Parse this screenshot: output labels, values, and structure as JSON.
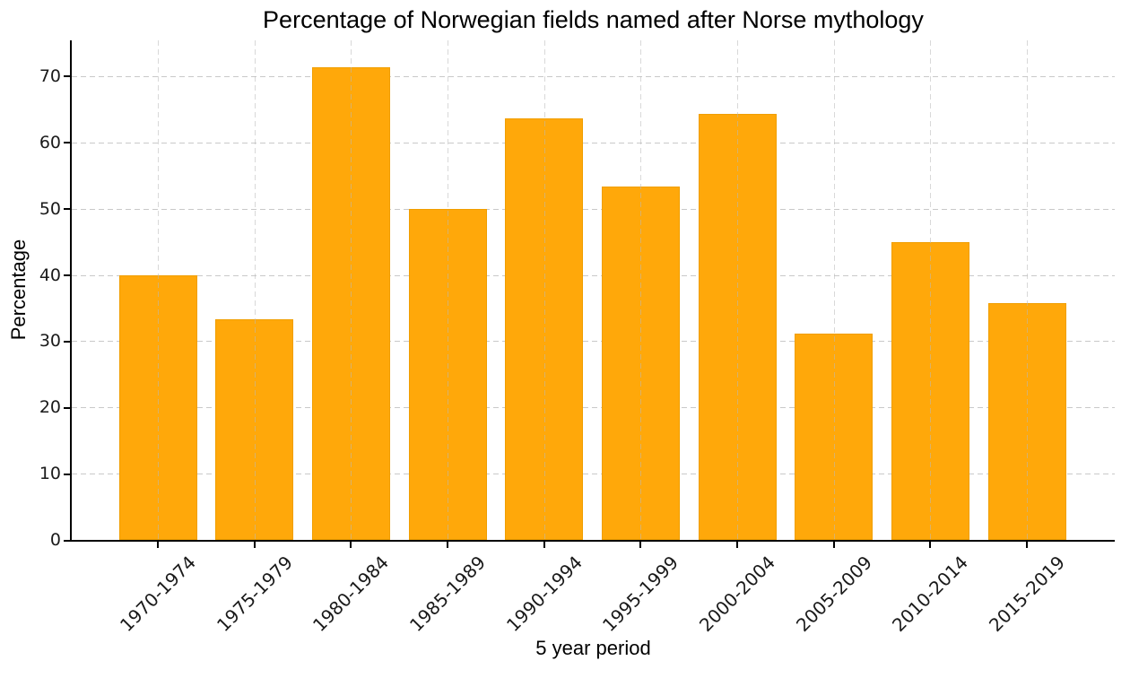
{
  "title": "Percentage of Norwegian fields named after Norse mythology",
  "chart_data": {
    "type": "bar",
    "title": "Percentage of Norwegian fields named after Norse mythology",
    "xlabel": "5 year period",
    "ylabel": "Percentage",
    "categories": [
      "1970-1974",
      "1975-1979",
      "1980-1984",
      "1985-1989",
      "1990-1994",
      "1995-1999",
      "2000-2004",
      "2005-2009",
      "2010-2014",
      "2015-2019"
    ],
    "values": [
      40.0,
      33.3,
      71.4,
      50.0,
      63.6,
      53.3,
      64.3,
      31.2,
      45.0,
      35.7
    ],
    "yticks": [
      0,
      10,
      20,
      30,
      40,
      50,
      60,
      70
    ],
    "ylim": [
      0,
      75.4
    ],
    "grid": true,
    "legend": "none",
    "colors": {
      "bar_fill": "#FFA80A",
      "bar_edge": "#F09E00",
      "grid": "#c9c9c9",
      "axis": "#000000",
      "text": "#000000"
    }
  }
}
